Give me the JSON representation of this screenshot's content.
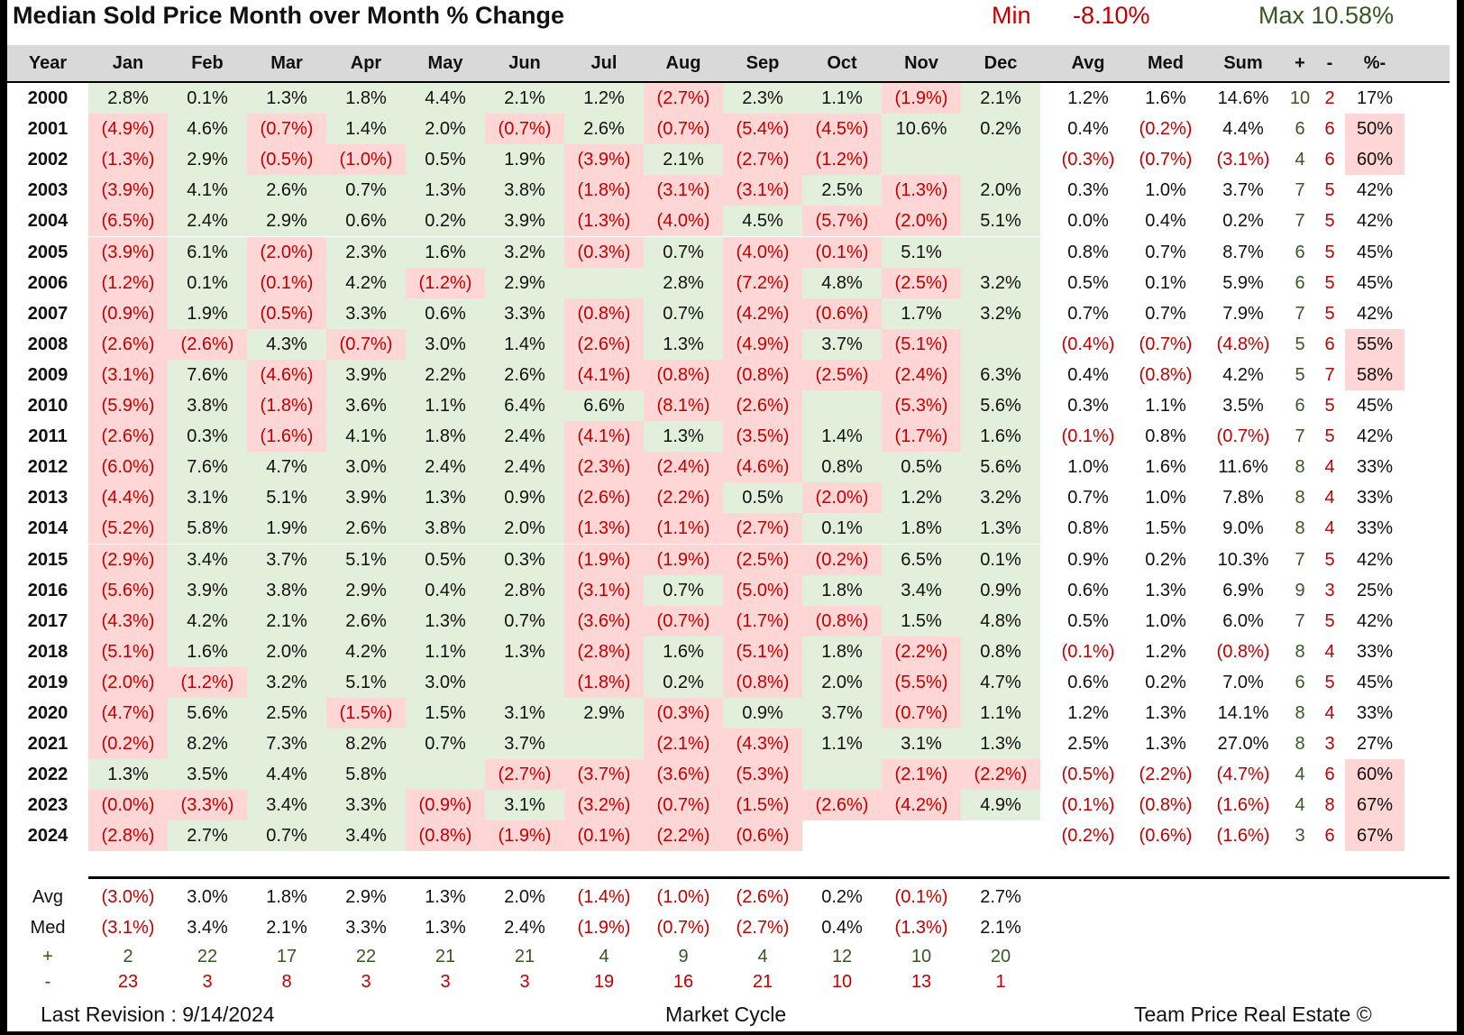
{
  "title": "Median Sold Price Month over Month % Change",
  "min_label": "Min",
  "min_value": "-8.10%",
  "max_label": "Max",
  "max_value": "Max 10.58%",
  "headers": [
    "Year",
    "Jan",
    "Feb",
    "Mar",
    "Apr",
    "May",
    "Jun",
    "Jul",
    "Aug",
    "Sep",
    "Oct",
    "Nov",
    "Dec",
    "Avg",
    "Med",
    "Sum",
    "+",
    "-",
    "%-"
  ],
  "footer": {
    "left": "Last Revision : 9/14/2024",
    "center": "Market Cycle",
    "right": "Team Price Real Estate ©"
  },
  "summary_labels": {
    "avg": "Avg",
    "med": "Med",
    "plus": "+",
    "minus": "-"
  },
  "chart_data": {
    "type": "table",
    "title": "Median Sold Price Month over Month % Change",
    "columns": [
      "Year",
      "Jan",
      "Feb",
      "Mar",
      "Apr",
      "May",
      "Jun",
      "Jul",
      "Aug",
      "Sep",
      "Oct",
      "Nov",
      "Dec",
      "Avg",
      "Med",
      "Sum",
      "+",
      "-",
      "%-"
    ],
    "rows": [
      [
        "2000",
        "2.8%",
        "0.1%",
        "1.3%",
        "1.8%",
        "4.4%",
        "2.1%",
        "1.2%",
        "(2.7%)",
        "2.3%",
        "1.1%",
        "(1.9%)",
        "2.1%",
        "1.2%",
        "1.6%",
        "14.6%",
        "10",
        "2",
        "17%"
      ],
      [
        "2001",
        "(4.9%)",
        "4.6%",
        "(0.7%)",
        "1.4%",
        "2.0%",
        "(0.7%)",
        "2.6%",
        "(0.7%)",
        "(5.4%)",
        "(4.5%)",
        "10.6%",
        "0.2%",
        "0.4%",
        "(0.2%)",
        "4.4%",
        "6",
        "6",
        "50%"
      ],
      [
        "2002",
        "(1.3%)",
        "2.9%",
        "(0.5%)",
        "(1.0%)",
        "0.5%",
        "1.9%",
        "(3.9%)",
        "2.1%",
        "(2.7%)",
        "(1.2%)",
        "",
        "",
        "(0.3%)",
        "(0.7%)",
        "(3.1%)",
        "4",
        "6",
        "60%"
      ],
      [
        "2003",
        "(3.9%)",
        "4.1%",
        "2.6%",
        "0.7%",
        "1.3%",
        "3.8%",
        "(1.8%)",
        "(3.1%)",
        "(3.1%)",
        "2.5%",
        "(1.3%)",
        "2.0%",
        "0.3%",
        "1.0%",
        "3.7%",
        "7",
        "5",
        "42%"
      ],
      [
        "2004",
        "(6.5%)",
        "2.4%",
        "2.9%",
        "0.6%",
        "0.2%",
        "3.9%",
        "(1.3%)",
        "(4.0%)",
        "4.5%",
        "(5.7%)",
        "(2.0%)",
        "5.1%",
        "0.0%",
        "0.4%",
        "0.2%",
        "7",
        "5",
        "42%"
      ],
      [
        "2005",
        "(3.9%)",
        "6.1%",
        "(2.0%)",
        "2.3%",
        "1.6%",
        "3.2%",
        "(0.3%)",
        "0.7%",
        "(4.0%)",
        "(0.1%)",
        "5.1%",
        "",
        "0.8%",
        "0.7%",
        "8.7%",
        "6",
        "5",
        "45%"
      ],
      [
        "2006",
        "(1.2%)",
        "0.1%",
        "(0.1%)",
        "4.2%",
        "(1.2%)",
        "2.9%",
        "",
        "2.8%",
        "(7.2%)",
        "4.8%",
        "(2.5%)",
        "3.2%",
        "0.5%",
        "0.1%",
        "5.9%",
        "6",
        "5",
        "45%"
      ],
      [
        "2007",
        "(0.9%)",
        "1.9%",
        "(0.5%)",
        "3.3%",
        "0.6%",
        "3.3%",
        "(0.8%)",
        "0.7%",
        "(4.2%)",
        "(0.6%)",
        "1.7%",
        "3.2%",
        "0.7%",
        "0.7%",
        "7.9%",
        "7",
        "5",
        "42%"
      ],
      [
        "2008",
        "(2.6%)",
        "(2.6%)",
        "4.3%",
        "(0.7%)",
        "3.0%",
        "1.4%",
        "(2.6%)",
        "1.3%",
        "(4.9%)",
        "3.7%",
        "(5.1%)",
        "",
        "(0.4%)",
        "(0.7%)",
        "(4.8%)",
        "5",
        "6",
        "55%"
      ],
      [
        "2009",
        "(3.1%)",
        "7.6%",
        "(4.6%)",
        "3.9%",
        "2.2%",
        "2.6%",
        "(4.1%)",
        "(0.8%)",
        "(0.8%)",
        "(2.5%)",
        "(2.4%)",
        "6.3%",
        "0.4%",
        "(0.8%)",
        "4.2%",
        "5",
        "7",
        "58%"
      ],
      [
        "2010",
        "(5.9%)",
        "3.8%",
        "(1.8%)",
        "3.6%",
        "1.1%",
        "6.4%",
        "6.6%",
        "(8.1%)",
        "(2.6%)",
        "",
        "(5.3%)",
        "5.6%",
        "0.3%",
        "1.1%",
        "3.5%",
        "6",
        "5",
        "45%"
      ],
      [
        "2011",
        "(2.6%)",
        "0.3%",
        "(1.6%)",
        "4.1%",
        "1.8%",
        "2.4%",
        "(4.1%)",
        "1.3%",
        "(3.5%)",
        "1.4%",
        "(1.7%)",
        "1.6%",
        "(0.1%)",
        "0.8%",
        "(0.7%)",
        "7",
        "5",
        "42%"
      ],
      [
        "2012",
        "(6.0%)",
        "7.6%",
        "4.7%",
        "3.0%",
        "2.4%",
        "2.4%",
        "(2.3%)",
        "(2.4%)",
        "(4.6%)",
        "0.8%",
        "0.5%",
        "5.6%",
        "1.0%",
        "1.6%",
        "11.6%",
        "8",
        "4",
        "33%"
      ],
      [
        "2013",
        "(4.4%)",
        "3.1%",
        "5.1%",
        "3.9%",
        "1.3%",
        "0.9%",
        "(2.6%)",
        "(2.2%)",
        "0.5%",
        "(2.0%)",
        "1.2%",
        "3.2%",
        "0.7%",
        "1.0%",
        "7.8%",
        "8",
        "4",
        "33%"
      ],
      [
        "2014",
        "(5.2%)",
        "5.8%",
        "1.9%",
        "2.6%",
        "3.8%",
        "2.0%",
        "(1.3%)",
        "(1.1%)",
        "(2.7%)",
        "0.1%",
        "1.8%",
        "1.3%",
        "0.8%",
        "1.5%",
        "9.0%",
        "8",
        "4",
        "33%"
      ],
      [
        "2015",
        "(2.9%)",
        "3.4%",
        "3.7%",
        "5.1%",
        "0.5%",
        "0.3%",
        "(1.9%)",
        "(1.9%)",
        "(2.5%)",
        "(0.2%)",
        "6.5%",
        "0.1%",
        "0.9%",
        "0.2%",
        "10.3%",
        "7",
        "5",
        "42%"
      ],
      [
        "2016",
        "(5.6%)",
        "3.9%",
        "3.8%",
        "2.9%",
        "0.4%",
        "2.8%",
        "(3.1%)",
        "0.7%",
        "(5.0%)",
        "1.8%",
        "3.4%",
        "0.9%",
        "0.6%",
        "1.3%",
        "6.9%",
        "9",
        "3",
        "25%"
      ],
      [
        "2017",
        "(4.3%)",
        "4.2%",
        "2.1%",
        "2.6%",
        "1.3%",
        "0.7%",
        "(3.6%)",
        "(0.7%)",
        "(1.7%)",
        "(0.8%)",
        "1.5%",
        "4.8%",
        "0.5%",
        "1.0%",
        "6.0%",
        "7",
        "5",
        "42%"
      ],
      [
        "2018",
        "(5.1%)",
        "1.6%",
        "2.0%",
        "4.2%",
        "1.1%",
        "1.3%",
        "(2.8%)",
        "1.6%",
        "(5.1%)",
        "1.8%",
        "(2.2%)",
        "0.8%",
        "(0.1%)",
        "1.2%",
        "(0.8%)",
        "8",
        "4",
        "33%"
      ],
      [
        "2019",
        "(2.0%)",
        "(1.2%)",
        "3.2%",
        "5.1%",
        "3.0%",
        "",
        "(1.8%)",
        "0.2%",
        "(0.8%)",
        "2.0%",
        "(5.5%)",
        "4.7%",
        "0.6%",
        "0.2%",
        "7.0%",
        "6",
        "5",
        "45%"
      ],
      [
        "2020",
        "(4.7%)",
        "5.6%",
        "2.5%",
        "(1.5%)",
        "1.5%",
        "3.1%",
        "2.9%",
        "(0.3%)",
        "0.9%",
        "3.7%",
        "(0.7%)",
        "1.1%",
        "1.2%",
        "1.3%",
        "14.1%",
        "8",
        "4",
        "33%"
      ],
      [
        "2021",
        "(0.2%)",
        "8.2%",
        "7.3%",
        "8.2%",
        "0.7%",
        "3.7%",
        "",
        "(2.1%)",
        "(4.3%)",
        "1.1%",
        "3.1%",
        "1.3%",
        "2.5%",
        "1.3%",
        "27.0%",
        "8",
        "3",
        "27%"
      ],
      [
        "2022",
        "1.3%",
        "3.5%",
        "4.4%",
        "5.8%",
        "",
        "(2.7%)",
        "(3.7%)",
        "(3.6%)",
        "(5.3%)",
        "",
        "(2.1%)",
        "(2.2%)",
        "(0.5%)",
        "(2.2%)",
        "(4.7%)",
        "4",
        "6",
        "60%"
      ],
      [
        "2023",
        "(0.0%)",
        "(3.3%)",
        "3.4%",
        "3.3%",
        "(0.9%)",
        "3.1%",
        "(3.2%)",
        "(0.7%)",
        "(1.5%)",
        "(2.6%)",
        "(4.2%)",
        "4.9%",
        "(0.1%)",
        "(0.8%)",
        "(1.6%)",
        "4",
        "8",
        "67%"
      ],
      [
        "2024",
        "(2.8%)",
        "2.7%",
        "0.7%",
        "3.4%",
        "(0.8%)",
        "(1.9%)",
        "(0.1%)",
        "(2.2%)",
        "(0.6%)",
        "-",
        "-",
        "-",
        "(0.2%)",
        "(0.6%)",
        "(1.6%)",
        "3",
        "6",
        "67%"
      ]
    ],
    "summary": {
      "avg": [
        "(3.0%)",
        "3.0%",
        "1.8%",
        "2.9%",
        "1.3%",
        "2.0%",
        "(1.4%)",
        "(1.0%)",
        "(2.6%)",
        "0.2%",
        "(0.1%)",
        "2.7%"
      ],
      "med": [
        "(3.1%)",
        "3.4%",
        "2.1%",
        "3.3%",
        "1.3%",
        "2.4%",
        "(1.9%)",
        "(0.7%)",
        "(2.7%)",
        "0.4%",
        "(1.3%)",
        "2.1%"
      ],
      "plus": [
        "2",
        "22",
        "17",
        "22",
        "21",
        "21",
        "4",
        "9",
        "4",
        "12",
        "10",
        "20"
      ],
      "minus": [
        "23",
        "3",
        "8",
        "3",
        "3",
        "3",
        "19",
        "16",
        "21",
        "10",
        "13",
        "1"
      ]
    },
    "colors": {
      "positive_fill": "#e2efda",
      "negative_fill": "#ffd6d6",
      "negative_text": "#c00000",
      "positive_count_text": "#375623"
    }
  }
}
